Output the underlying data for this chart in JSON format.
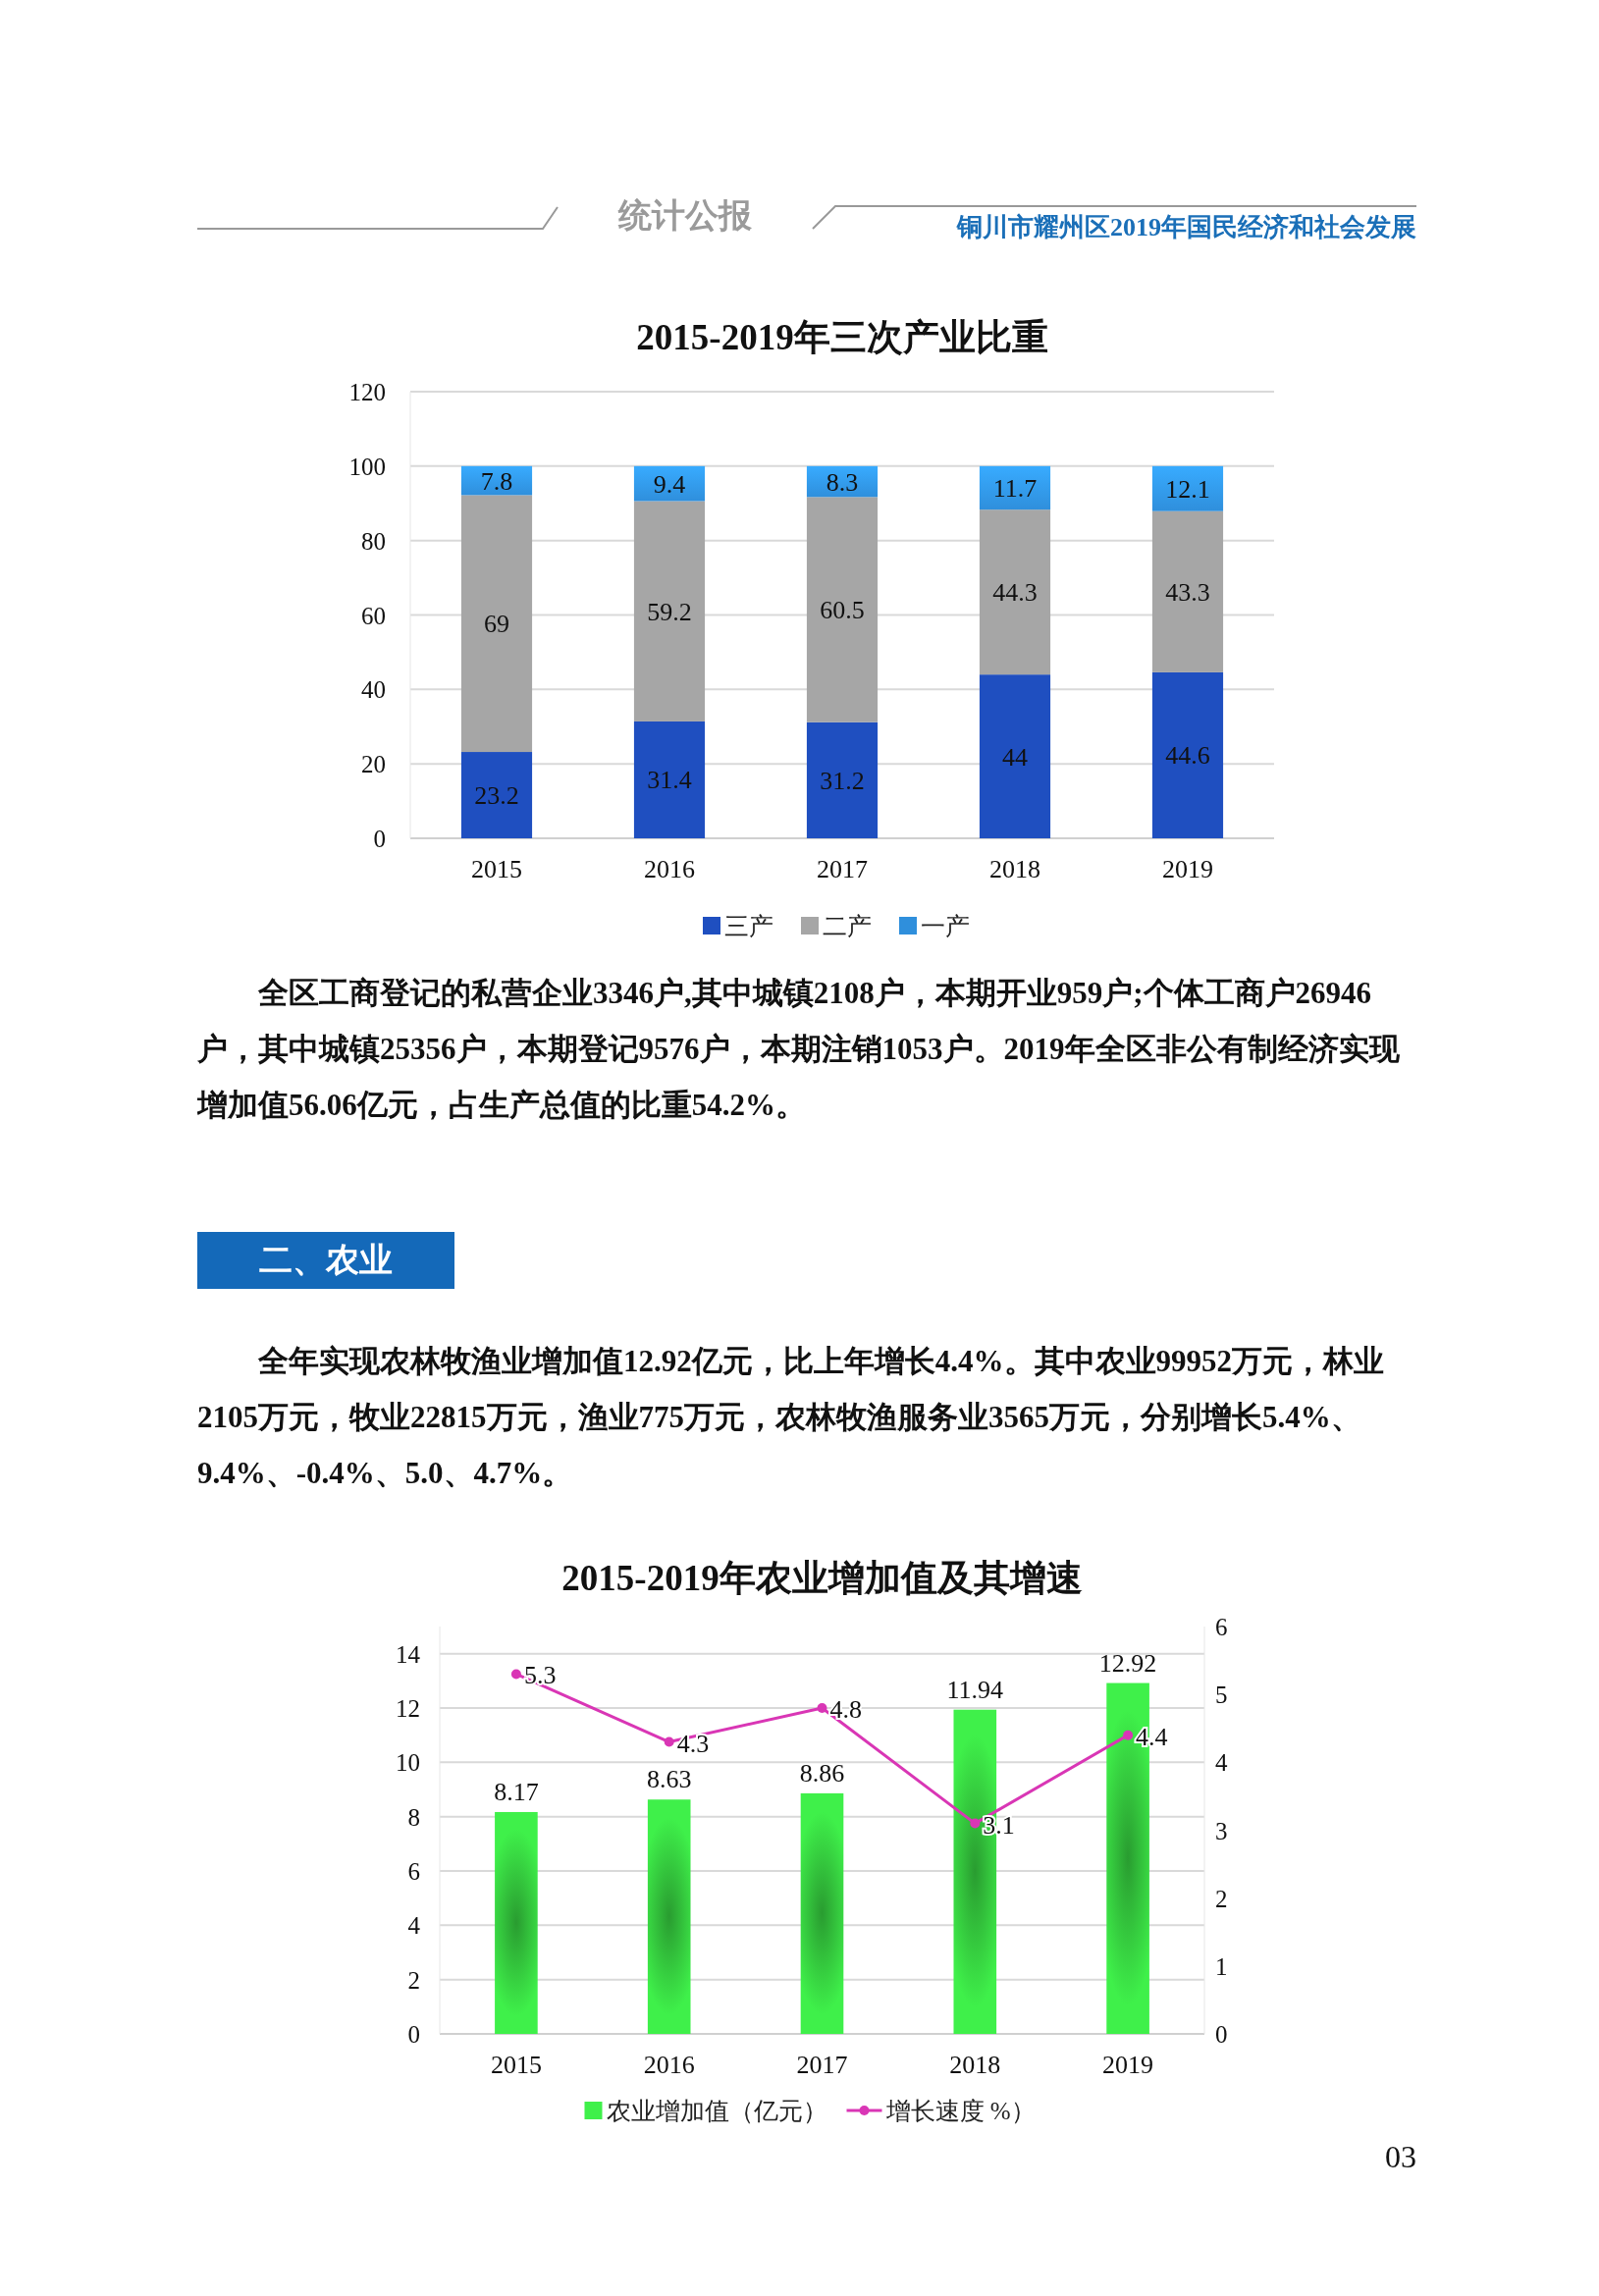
{
  "chart_data": [
    {
      "type": "bar",
      "title": "2015-2019年三次产业比重",
      "stacked": true,
      "categories": [
        "2015",
        "2016",
        "2017",
        "2018",
        "2019"
      ],
      "series": [
        {
          "name": "三产",
          "color": "#1f4fc0",
          "values": [
            23.2,
            31.4,
            31.2,
            44,
            44.6
          ]
        },
        {
          "name": "二产",
          "color": "#a6a6a6",
          "values": [
            69,
            59.2,
            60.5,
            44.3,
            43.3
          ]
        },
        {
          "name": "一产",
          "color": "#2f8fdc",
          "values": [
            7.8,
            9.4,
            8.3,
            11.7,
            12.1
          ]
        }
      ],
      "ylim": [
        0,
        120
      ],
      "yticks": [
        0,
        20,
        40,
        60,
        80,
        100,
        120
      ],
      "grid": "y",
      "legend": "bottom",
      "data_labels": true,
      "annotations": [
        "统计公报",
        "铜川市耀州区2019年国民经济和社会发展",
        "全区工商登记的私营企业3346户,其中城镇2108户，本期开业959户;个体工商户26946户，其中城镇25356户，本期登记9576户，本期注销1053户。2019年全区非公有制经济实现增加值56.06亿元，占生产总值的比重54.2%。"
      ]
    },
    {
      "type": "bar",
      "title": "2015-2019年农业增加值及其增速",
      "categories": [
        "2015",
        "2016",
        "2017",
        "2018",
        "2019"
      ],
      "series": [
        {
          "name": "农业增加值（亿元）",
          "color": "#3ff04a",
          "values": [
            8.17,
            8.63,
            8.86,
            11.94,
            12.92
          ]
        },
        {
          "name": "增长速度 %）",
          "type": "line",
          "axis": "y2",
          "color": "#d936b5",
          "marker": "circle",
          "values": [
            5.3,
            4.3,
            4.8,
            3.1,
            4.4
          ]
        }
      ],
      "ylim": [
        0,
        15
      ],
      "yticks": [
        0,
        2,
        4,
        6,
        8,
        10,
        12,
        14
      ],
      "y2lim": [
        0,
        6
      ],
      "y2ticks": [
        0,
        1,
        2,
        3,
        4,
        5,
        6
      ],
      "grid": "y",
      "legend": "bottom",
      "data_labels": true,
      "annotations": [
        "二、农业",
        "全年实现农林牧渔业增加值12.92亿元，比上年增长4.4%。其中农业99952万元，林业2105万元，牧业22815万元，渔业775万元，农林牧渔服务业3565万元，分别增长5.4%、9.4%、-0.4%、5.0、4.7%。",
        "03"
      ]
    }
  ]
}
